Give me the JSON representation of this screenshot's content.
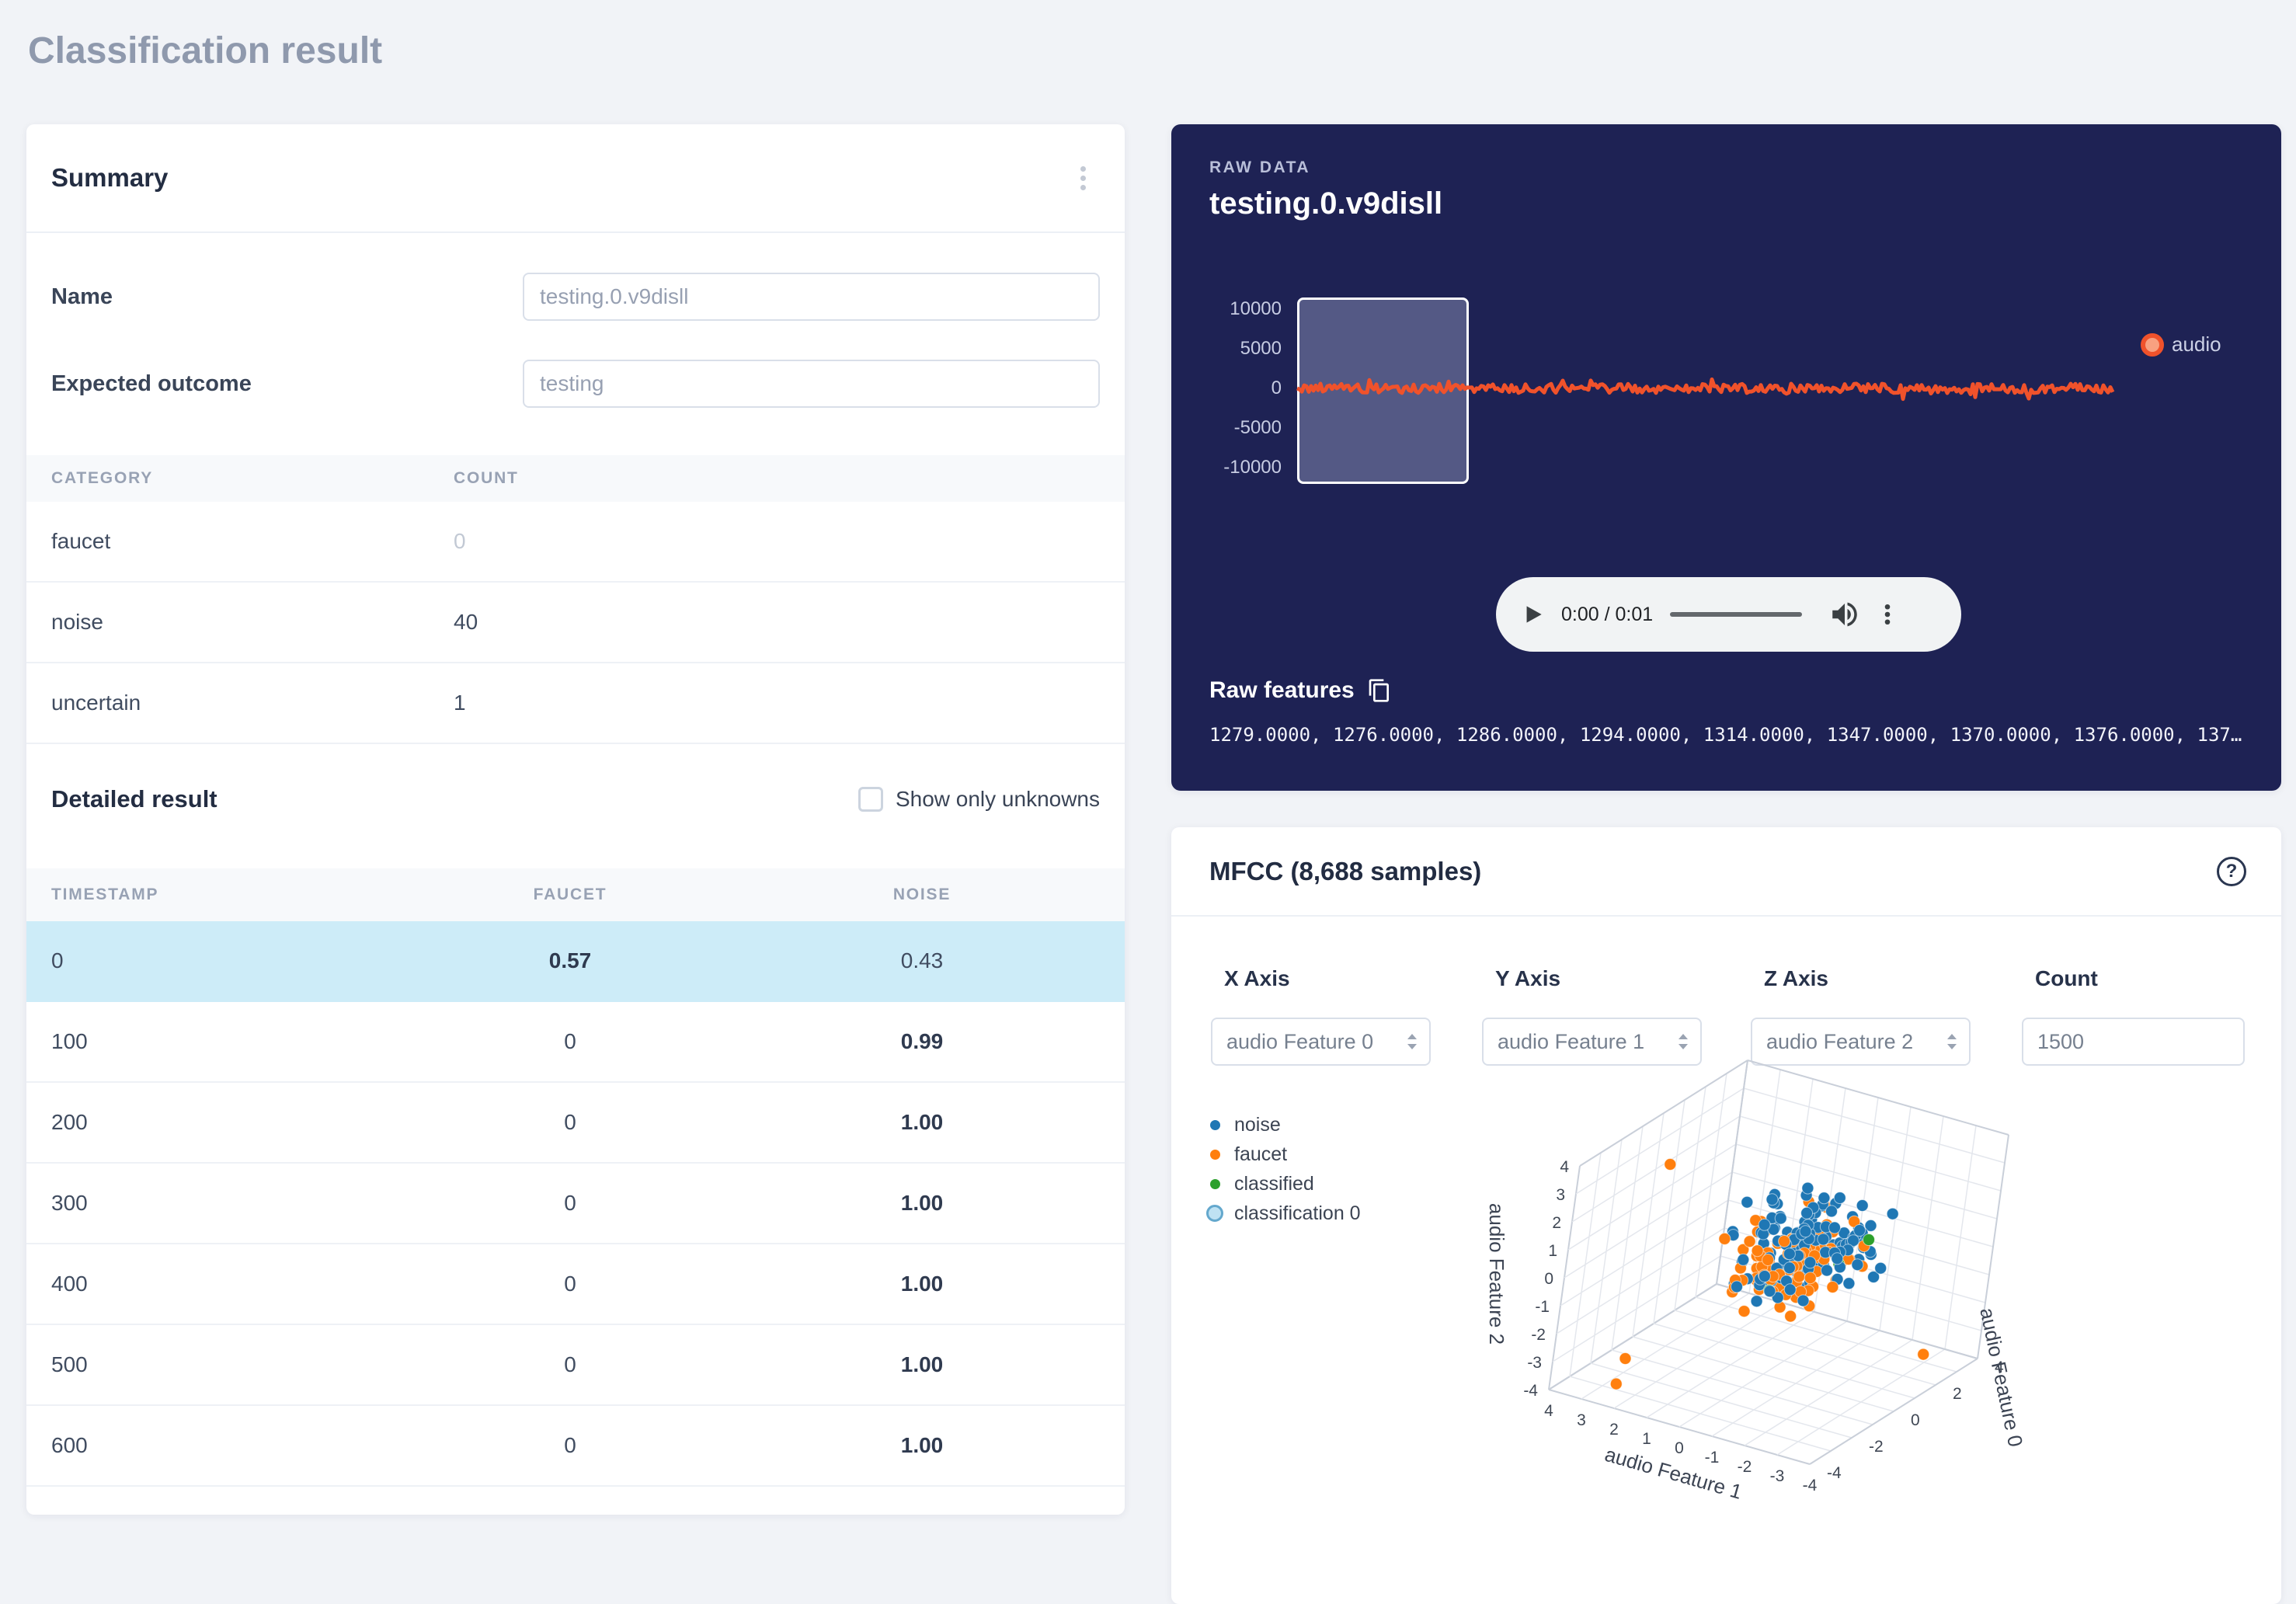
{
  "page": {
    "title": "Classification result"
  },
  "summary": {
    "title": "Summary",
    "name_label": "Name",
    "name_value": "testing.0.v9disll",
    "expected_label": "Expected outcome",
    "expected_value": "testing",
    "categories": {
      "headers": [
        "CATEGORY",
        "COUNT"
      ],
      "rows": [
        {
          "category": "faucet",
          "count": "0"
        },
        {
          "category": "noise",
          "count": "40"
        },
        {
          "category": "uncertain",
          "count": "1"
        }
      ]
    },
    "detailed": {
      "title": "Detailed result",
      "filter_label": "Show only unknowns",
      "headers": [
        "TIMESTAMP",
        "FAUCET",
        "NOISE"
      ],
      "rows": [
        {
          "timestamp": "0",
          "faucet": "0.57",
          "noise": "0.43"
        },
        {
          "timestamp": "100",
          "faucet": "0",
          "noise": "0.99"
        },
        {
          "timestamp": "200",
          "faucet": "0",
          "noise": "1.00"
        },
        {
          "timestamp": "300",
          "faucet": "0",
          "noise": "1.00"
        },
        {
          "timestamp": "400",
          "faucet": "0",
          "noise": "1.00"
        },
        {
          "timestamp": "500",
          "faucet": "0",
          "noise": "1.00"
        },
        {
          "timestamp": "600",
          "faucet": "0",
          "noise": "1.00"
        }
      ]
    }
  },
  "raw_data": {
    "kicker": "RAW DATA",
    "title": "testing.0.v9disll",
    "chart": {
      "y_ticks": [
        "10000",
        "5000",
        "0",
        "-5000",
        "-10000"
      ],
      "line_color": "#f0522b",
      "legend_label": "audio"
    },
    "player": {
      "time": "0:00 / 0:01"
    },
    "features_label": "Raw features",
    "features_value": "1279.0000, 1276.0000, 1286.0000, 1294.0000, 1314.0000, 1347.0000, 1370.0000, 1376.0000, 137…"
  },
  "mfcc": {
    "title": "MFCC (8,688 samples)",
    "controls": {
      "x": {
        "label": "X Axis",
        "value": "audio Feature 0"
      },
      "y": {
        "label": "Y Axis",
        "value": "audio Feature 1"
      },
      "z": {
        "label": "Z Axis",
        "value": "audio Feature 2"
      },
      "count": {
        "label": "Count",
        "value": "1500"
      }
    },
    "legend": [
      {
        "label": "noise",
        "color": "#1f77b4"
      },
      {
        "label": "faucet",
        "color": "#ff7f0e"
      },
      {
        "label": "classified",
        "color": "#2ca02c"
      },
      {
        "label": "classification 0",
        "color": "#bfe2f3",
        "ring": "#64a8cd"
      }
    ],
    "chart_data": {
      "type": "scatter",
      "projection": "3d",
      "x_title": "audio Feature 1",
      "y_title": "audio Feature 2",
      "z_title": "audio Feature 0",
      "axis_range": [
        -4,
        4
      ],
      "series": [
        "noise",
        "faucet",
        "classified"
      ]
    }
  }
}
